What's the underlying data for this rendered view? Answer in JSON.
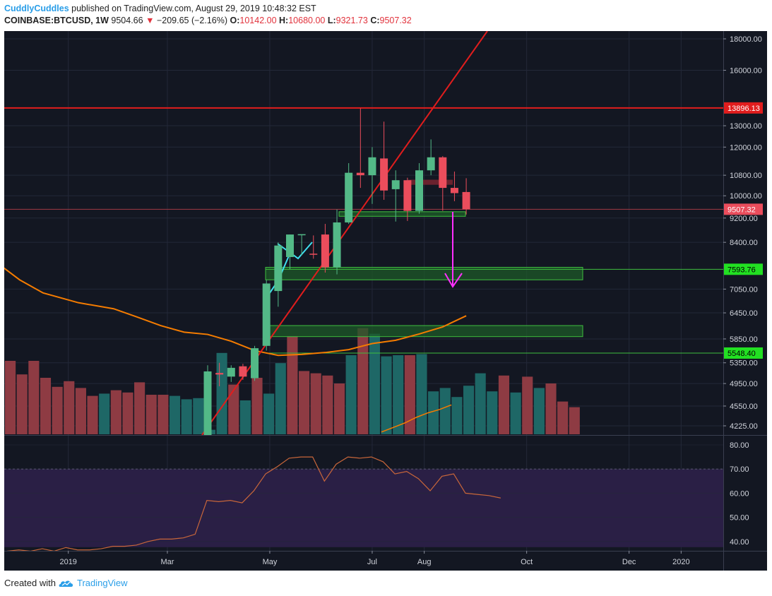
{
  "header": {
    "author": "CuddlyCuddles",
    "published_text": "published on TradingView.com, August 29, 2019 10:48:32 EST",
    "symbol": "COINBASE:BTCUSD, 1W",
    "last": "9504.66",
    "change": "−209.65 (−2.16%)",
    "open_label": "O:",
    "open": "10142.00",
    "high_label": "H:",
    "high": "10680.00",
    "low_label": "L:",
    "low": "9321.73",
    "close_label": "C:",
    "close": "9507.32"
  },
  "footer": {
    "created_with": "Created with",
    "brand": "TradingView"
  },
  "colors": {
    "background": "#131722",
    "up": "#53b987",
    "down": "#eb4d5c",
    "vol_up": "#1e6766",
    "vol_down": "#8e3b43",
    "ma": "#f57c00",
    "trend": "#e11d1d",
    "rsi_line": "#c8663a",
    "rsi_band": "#2a1f45",
    "zone_fill": "#1d5a28",
    "zone_border": "#3fbf3f",
    "target_arrow": "#ff2fff"
  },
  "chart_data": {
    "type": "candlestick",
    "interval": "1W",
    "y_scale": "log",
    "y_ticks": [
      18000,
      16000,
      13000,
      12000,
      10800,
      10000,
      9200,
      8400,
      7050,
      6450,
      5850,
      5350,
      4950,
      4550,
      4225
    ],
    "y_tick_labels": [
      "18000.00",
      "16000.00",
      "13000.00",
      "12000.00",
      "10800.00",
      "10000.00",
      "9200.00",
      "8400.00",
      "7050.00",
      "6450.00",
      "5850.00",
      "5350.00",
      "4950.00",
      "4550.00",
      "4225.00"
    ],
    "x_labels": [
      {
        "label": "2019",
        "date": "2019-01-01"
      },
      {
        "label": "Mar",
        "date": "2019-03-01"
      },
      {
        "label": "May",
        "date": "2019-05-01"
      },
      {
        "label": "Jul",
        "date": "2019-07-01"
      },
      {
        "label": "Aug",
        "date": "2019-08-01"
      },
      {
        "label": "Oct",
        "date": "2019-10-01"
      },
      {
        "label": "Dec",
        "date": "2019-12-01"
      },
      {
        "label": "2020",
        "date": "2020-01-01"
      }
    ],
    "candles": [
      {
        "date": "2019-03-25",
        "o": 4000,
        "h": 5300,
        "l": 3980,
        "c": 5180
      },
      {
        "date": "2019-04-01",
        "o": 5150,
        "h": 5350,
        "l": 4900,
        "c": 5120
      },
      {
        "date": "2019-04-08",
        "o": 5080,
        "h": 5300,
        "l": 4980,
        "c": 5250
      },
      {
        "date": "2019-04-15",
        "o": 5280,
        "h": 5330,
        "l": 5020,
        "c": 5080
      },
      {
        "date": "2019-04-22",
        "o": 5050,
        "h": 5700,
        "l": 5000,
        "c": 5650
      },
      {
        "date": "2019-04-29",
        "o": 5700,
        "h": 7300,
        "l": 5600,
        "c": 7200
      },
      {
        "date": "2019-05-06",
        "o": 7000,
        "h": 8400,
        "l": 6600,
        "c": 8300
      },
      {
        "date": "2019-05-13",
        "o": 7950,
        "h": 8650,
        "l": 7600,
        "c": 8650
      },
      {
        "date": "2019-05-20",
        "o": 8650,
        "h": 8650,
        "l": 8000,
        "c": 8660
      },
      {
        "date": "2019-05-27",
        "o": 8050,
        "h": 8620,
        "l": 7900,
        "c": 8030
      },
      {
        "date": "2019-06-03",
        "o": 8650,
        "h": 9000,
        "l": 7500,
        "c": 7650
      },
      {
        "date": "2019-06-10",
        "o": 7650,
        "h": 9500,
        "l": 7450,
        "c": 9050
      },
      {
        "date": "2019-06-17",
        "o": 9050,
        "h": 11300,
        "l": 9000,
        "c": 10900
      },
      {
        "date": "2019-06-24",
        "o": 10900,
        "h": 13880,
        "l": 10300,
        "c": 10800
      },
      {
        "date": "2019-07-01",
        "o": 10800,
        "h": 12000,
        "l": 9700,
        "c": 11550
      },
      {
        "date": "2019-07-08",
        "o": 11500,
        "h": 13200,
        "l": 9850,
        "c": 10200
      },
      {
        "date": "2019-07-15",
        "o": 10250,
        "h": 11000,
        "l": 9080,
        "c": 10600
      },
      {
        "date": "2019-07-22",
        "o": 10600,
        "h": 10700,
        "l": 9100,
        "c": 9450
      },
      {
        "date": "2019-07-29",
        "o": 9450,
        "h": 11300,
        "l": 9350,
        "c": 11000
      },
      {
        "date": "2019-08-05",
        "o": 11000,
        "h": 12350,
        "l": 10800,
        "c": 11550
      },
      {
        "date": "2019-08-12",
        "o": 11550,
        "h": 11600,
        "l": 9450,
        "c": 10300
      },
      {
        "date": "2019-08-19",
        "o": 10300,
        "h": 10950,
        "l": 9800,
        "c": 10100
      },
      {
        "date": "2019-08-26",
        "o": 10142,
        "h": 10680,
        "l": 9321.73,
        "c": 9507.32
      }
    ],
    "moving_average": [
      {
        "date": "2018-11-19",
        "v": 7800
      },
      {
        "date": "2018-12-03",
        "v": 7300
      },
      {
        "date": "2018-12-17",
        "v": 6950
      },
      {
        "date": "2019-01-07",
        "v": 6700
      },
      {
        "date": "2019-01-28",
        "v": 6550
      },
      {
        "date": "2019-02-11",
        "v": 6350
      },
      {
        "date": "2019-02-25",
        "v": 6150
      },
      {
        "date": "2019-03-11",
        "v": 6000
      },
      {
        "date": "2019-03-25",
        "v": 5950
      },
      {
        "date": "2019-04-08",
        "v": 5800
      },
      {
        "date": "2019-04-22",
        "v": 5600
      },
      {
        "date": "2019-05-06",
        "v": 5500
      },
      {
        "date": "2019-05-20",
        "v": 5520
      },
      {
        "date": "2019-06-03",
        "v": 5560
      },
      {
        "date": "2019-06-17",
        "v": 5620
      },
      {
        "date": "2019-07-01",
        "v": 5750
      },
      {
        "date": "2019-07-15",
        "v": 5820
      },
      {
        "date": "2019-07-29",
        "v": 5960
      },
      {
        "date": "2019-08-12",
        "v": 6120
      },
      {
        "date": "2019-08-26",
        "v": 6380
      }
    ],
    "volume_up": [
      false,
      false,
      false,
      false,
      false,
      false,
      false,
      false,
      true,
      false,
      false,
      false,
      false,
      false,
      true,
      true,
      true,
      true,
      true,
      false,
      true,
      false,
      true,
      true,
      false,
      false,
      false,
      false,
      false,
      true,
      false,
      true,
      true,
      true,
      false,
      true,
      true,
      true,
      true,
      true,
      true,
      true,
      false,
      true,
      false,
      true,
      false,
      false,
      false
    ],
    "volume_rel": [
      0.65,
      0.53,
      0.65,
      0.5,
      0.42,
      0.47,
      0.41,
      0.34,
      0.36,
      0.39,
      0.37,
      0.46,
      0.35,
      0.35,
      0.34,
      0.31,
      0.32,
      0.04,
      0.72,
      0.44,
      0.3,
      0.5,
      0.36,
      0.63,
      0.87,
      0.56,
      0.54,
      0.52,
      0.45,
      0.7,
      0.94,
      0.89,
      0.69,
      0.7,
      0.7,
      0.71,
      0.38,
      0.41,
      0.33,
      0.43,
      0.54,
      0.38,
      0.52,
      0.37,
      0.51,
      0.41,
      0.45,
      0.29,
      0.24
    ],
    "volume_ma_rel": [
      0.02,
      0.06,
      0.1,
      0.15,
      0.19,
      0.22,
      0.26
    ],
    "rsi": {
      "ticks": [
        80,
        70,
        60,
        50,
        40
      ],
      "tick_labels": [
        "80.00",
        "70.00",
        "60.00",
        "50.00",
        "40.00"
      ],
      "overbought": 70,
      "values": [
        36,
        36.5,
        36,
        37,
        36,
        37.5,
        36.5,
        36.5,
        37,
        38,
        38,
        38.5,
        40,
        41,
        41,
        41.5,
        43,
        57,
        56.5,
        57,
        56,
        61,
        68,
        71,
        74.5,
        75,
        75,
        65,
        72,
        75,
        74.5,
        75,
        73,
        68,
        69,
        66,
        61,
        67,
        68,
        60,
        59.5,
        59,
        58
      ]
    },
    "annotations": {
      "resistance_level": 13896.13,
      "resistance_label": "13896.13",
      "current_price_label": "9507.32",
      "support_1": 7593.76,
      "support_1_label": "7593.76",
      "support_2": 5548.4,
      "support_2_label": "5548.40",
      "zone_1": [
        7300,
        7650
      ],
      "zone_2": [
        5900,
        6150
      ],
      "target_arrow_to": 7050
    }
  }
}
